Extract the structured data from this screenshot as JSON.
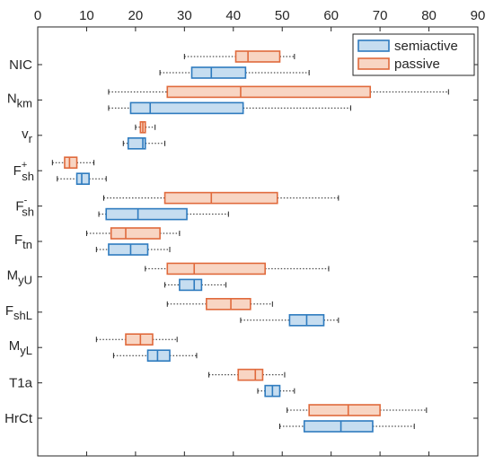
{
  "chart_data": {
    "type": "boxplot",
    "orientation": "horizontal",
    "xlim": [
      0,
      90
    ],
    "x_ticks": [
      0,
      10,
      20,
      30,
      40,
      50,
      60,
      70,
      80,
      90
    ],
    "x_tick_position": "top",
    "categories": [
      {
        "id": "NIC",
        "base": "NIC",
        "sub": "",
        "sup": ""
      },
      {
        "id": "Nkm",
        "base": "N",
        "sub": "km",
        "sup": ""
      },
      {
        "id": "vr",
        "base": "v",
        "sub": "r",
        "sup": ""
      },
      {
        "id": "Fsh+",
        "base": "F",
        "sub": "sh",
        "sup": "+"
      },
      {
        "id": "Fsh-",
        "base": "F",
        "sub": "sh",
        "sup": "-"
      },
      {
        "id": "Ftn",
        "base": "F",
        "sub": "tn",
        "sup": ""
      },
      {
        "id": "MyU",
        "base": "M",
        "sub": "yU",
        "sup": ""
      },
      {
        "id": "FshL",
        "base": "F",
        "sub": "shL",
        "sup": ""
      },
      {
        "id": "MyL",
        "base": "M",
        "sub": "yL",
        "sup": ""
      },
      {
        "id": "T1a",
        "base": "T1a",
        "sub": "",
        "sup": ""
      },
      {
        "id": "HrCt",
        "base": "HrCt",
        "sub": "",
        "sup": ""
      }
    ],
    "series": [
      {
        "name": "semiactive",
        "color": "#2e7bbf",
        "fill": "#c6ddf0",
        "boxes": [
          {
            "min": 25,
            "q1": 31.5,
            "median": 35.5,
            "q3": 42.5,
            "max": 55.5
          },
          {
            "min": 14.5,
            "q1": 19,
            "median": 23,
            "q3": 42,
            "max": 64
          },
          {
            "min": 17.5,
            "q1": 18.5,
            "median": 21.5,
            "q3": 22,
            "max": 26
          },
          {
            "min": 4,
            "q1": 8,
            "median": 9,
            "q3": 10.5,
            "max": 14
          },
          {
            "min": 12.5,
            "q1": 14,
            "median": 20.5,
            "q3": 30.5,
            "max": 39
          },
          {
            "min": 12,
            "q1": 14.5,
            "median": 19,
            "q3": 22.5,
            "max": 27
          },
          {
            "min": 26,
            "q1": 29,
            "median": 32,
            "q3": 33.5,
            "max": 38.5
          },
          {
            "min": 41.5,
            "q1": 51.5,
            "median": 55,
            "q3": 58.5,
            "max": 61.5
          },
          {
            "min": 15.5,
            "q1": 22.5,
            "median": 24.5,
            "q3": 27,
            "max": 32.5
          },
          {
            "min": 45,
            "q1": 46.5,
            "median": 48,
            "q3": 49.5,
            "max": 52.5
          },
          {
            "min": 49.5,
            "q1": 54.5,
            "median": 62,
            "q3": 68.5,
            "max": 77
          }
        ]
      },
      {
        "name": "passive",
        "color": "#e06a3c",
        "fill": "#f8d5c3",
        "boxes": [
          {
            "min": 30,
            "q1": 40.5,
            "median": 43,
            "q3": 49.5,
            "max": 52.5
          },
          {
            "min": 14.5,
            "q1": 26.5,
            "median": 41.5,
            "q3": 68,
            "max": 84
          },
          {
            "min": 20,
            "q1": 21,
            "median": 21.5,
            "q3": 22,
            "max": 24
          },
          {
            "min": 3,
            "q1": 5.5,
            "median": 6.5,
            "q3": 8,
            "max": 11.5
          },
          {
            "min": 13.5,
            "q1": 26,
            "median": 35.5,
            "q3": 49,
            "max": 61.5
          },
          {
            "min": 10,
            "q1": 15,
            "median": 18,
            "q3": 25,
            "max": 29
          },
          {
            "min": 22,
            "q1": 26.5,
            "median": 32,
            "q3": 46.5,
            "max": 59.5
          },
          {
            "min": 26.5,
            "q1": 34.5,
            "median": 39.5,
            "q3": 43.5,
            "max": 48
          },
          {
            "min": 12,
            "q1": 18,
            "median": 21,
            "q3": 23.5,
            "max": 28.5
          },
          {
            "min": 35,
            "q1": 41,
            "median": 44.5,
            "q3": 46,
            "max": 50.5
          },
          {
            "min": 51,
            "q1": 55.5,
            "median": 63.5,
            "q3": 70,
            "max": 79.5
          }
        ]
      }
    ],
    "legend": {
      "placement": "top-right",
      "entries": [
        "semiactive",
        "passive"
      ]
    },
    "grid": false
  }
}
